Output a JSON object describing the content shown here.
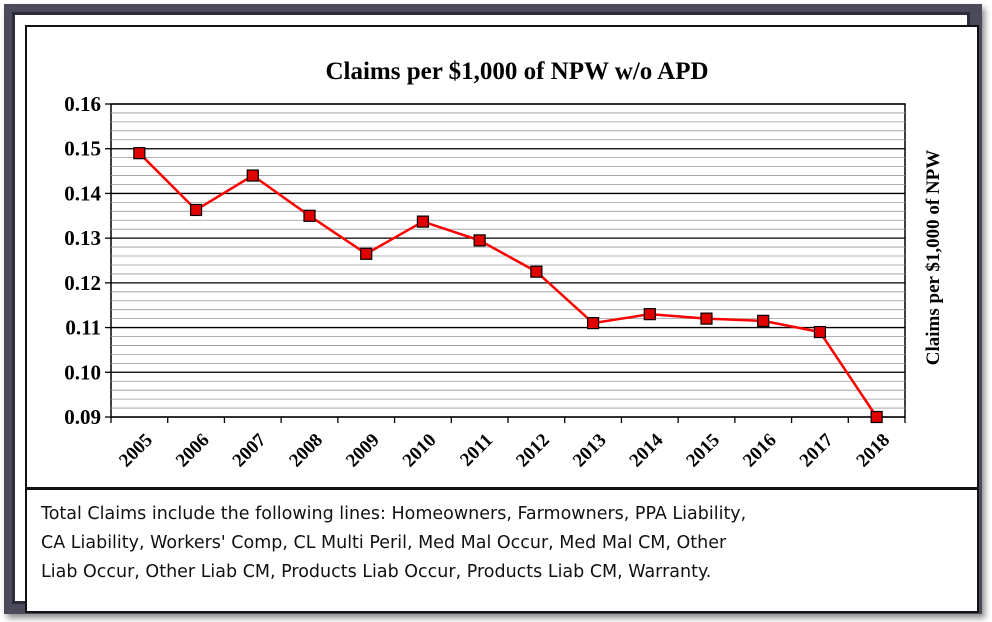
{
  "chart_data": {
    "type": "line",
    "title": "Claims per $1,000 of NPW w/o APD",
    "xlabel": "",
    "ylabel": "Claims per $1,000 of NPW",
    "ylabel_position": "right",
    "categories": [
      "2005",
      "2006",
      "2007",
      "2008",
      "2009",
      "2010",
      "2011",
      "2012",
      "2013",
      "2014",
      "2015",
      "2016",
      "2017",
      "2018"
    ],
    "series": [
      {
        "values": [
          0.149,
          0.1363,
          0.144,
          0.135,
          0.1265,
          0.1337,
          0.1295,
          0.1225,
          0.111,
          0.113,
          0.112,
          0.1115,
          0.109,
          0.09
        ],
        "line_color": "#ff0000",
        "marker_color": "#e00000",
        "marker": "square"
      }
    ],
    "ylim": [
      0.09,
      0.16
    ],
    "yticks": [
      "0.16",
      "0.15",
      "0.14",
      "0.13",
      "0.12",
      "0.11",
      "0.10",
      "0.09"
    ],
    "ytick_values": [
      0.16,
      0.15,
      0.14,
      0.13,
      0.12,
      0.11,
      0.1,
      0.09
    ],
    "grid": true,
    "legend": "none"
  },
  "note": {
    "line1": "Total Claims include the following lines: Homeowners, Farmowners, PPA Liability,",
    "line2": "CA Liability, Workers' Comp, CL Multi Peril, Med Mal Occur, Med Mal CM, Other",
    "line3": "Liab Occur, Other Liab CM, Products Liab Occur, Products Liab CM, Warranty."
  }
}
